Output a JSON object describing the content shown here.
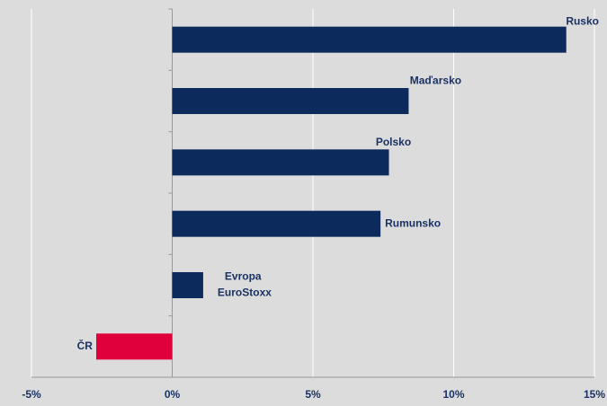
{
  "chart_data": {
    "type": "hbar",
    "categories": [
      "Rusko",
      "Maďarsko",
      "Polsko",
      "Rumunsko",
      "Evropa EuroStoxx",
      "ČR"
    ],
    "values": [
      14.0,
      8.4,
      7.7,
      7.4,
      1.1,
      -2.7
    ],
    "colors": [
      "#0c2a5c",
      "#0c2a5c",
      "#0c2a5c",
      "#0c2a5c",
      "#0c2a5c",
      "#e0003c"
    ],
    "xlim": [
      -5,
      15
    ],
    "xticks": [
      {
        "value": -5,
        "label": "-5%"
      },
      {
        "value": 0,
        "label": "0%"
      },
      {
        "value": 5,
        "label": "5%"
      },
      {
        "value": 10,
        "label": "10%"
      },
      {
        "value": 15,
        "label": "15%"
      }
    ],
    "grid": true
  }
}
